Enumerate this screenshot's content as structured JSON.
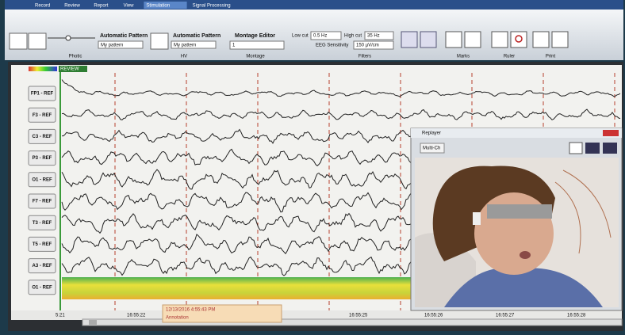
{
  "menu": [
    "Record",
    "Review",
    "Report",
    "View",
    "Stimulation",
    "Signal Processing"
  ],
  "toolbar": {
    "photic": {
      "label": "Automatic Pattern",
      "pattern": "My pattern",
      "group": "Photic"
    },
    "hv": {
      "label": "Automatic Pattern",
      "pattern": "My pattern",
      "group": "HV"
    },
    "montage": {
      "label": "Montage Editor",
      "value": "1",
      "group": "Montage"
    },
    "filters": {
      "low_cut_label": "Low cut",
      "low_cut": "0.5 Hz",
      "high_cut_label": "High cut",
      "high_cut": "35 Hz",
      "sensitivity_label": "EEG Sensitivity",
      "sensitivity": "150 µV/cm",
      "group": "Filters"
    },
    "marks": "Marks",
    "ruler": "Ruler",
    "print": "Print"
  },
  "eeg": {
    "mode": "REVIEW",
    "channels": [
      "FP1 - REF",
      "F3 - REF",
      "C3 - REF",
      "P3 - REF",
      "O1 - REF",
      "F7 - REF",
      "T3 - REF",
      "T5 - REF",
      "A3 - REF",
      "O1 - REF"
    ],
    "start": "5:21",
    "time_labels": [
      "16:55:22",
      "16:55:25",
      "16:55:26",
      "16:55:27",
      "16:55:28"
    ],
    "annotation": {
      "time": "12/13/2016 4:55:43 PM",
      "label": "Annotation"
    }
  },
  "video": {
    "title": "Replayer",
    "button": "Multi-Ch"
  }
}
